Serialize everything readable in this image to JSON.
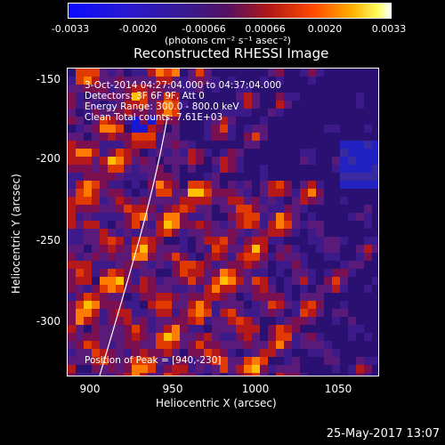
{
  "colorbar": {
    "ticks": [
      "-0.0033",
      "-0.0020",
      "-0.00066",
      "0.00066",
      "0.0020",
      "0.0033"
    ],
    "units": "(photons cm⁻² s⁻¹ asec⁻²)"
  },
  "title": "Reconstructed RHESSI Image",
  "info": {
    "line1": "3-Oct-2014 04:27:04.000 to 04:37:04.000",
    "line2": "Detectors: 3F 6F 9F, Att 0",
    "line3": "Energy Range: 300.0 - 800.0 keV",
    "line4": "Clean    Total counts: 7.61E+03"
  },
  "peak_label": "Position of Peak = [940,-230]",
  "axes": {
    "xlabel": "Heliocentric X (arcsec)",
    "ylabel": "Heliocentric Y (arcsec)",
    "xticks": [
      "900",
      "950",
      "1000",
      "1050"
    ],
    "yticks": [
      "-150",
      "-200",
      "-250",
      "-300"
    ]
  },
  "timestamp": "25-May-2017 13:07",
  "colors": {
    "background": "#000000",
    "colormap": [
      "#0000ff",
      "#3a1a9a",
      "#5a1a8a",
      "#c0182a",
      "#ff5500",
      "#ffd000",
      "#ffffff"
    ]
  }
}
